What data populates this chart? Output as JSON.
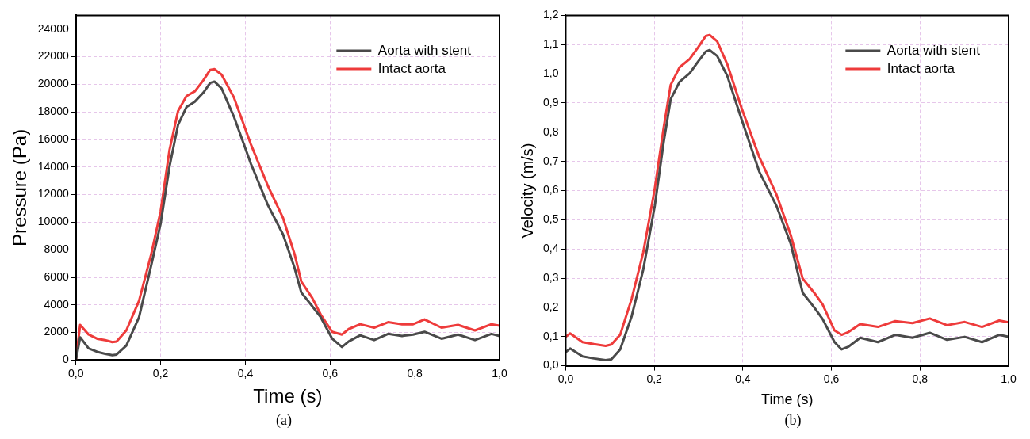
{
  "chart_data": [
    {
      "type": "line",
      "xlabel": "Time (s)",
      "ylabel": "Pressure (Pa)",
      "annotations": [
        "(a)"
      ],
      "grid": true,
      "legend": "top right",
      "xlim": [
        0,
        1
      ],
      "xticks": [
        {
          "value": 0,
          "label": "0,0"
        },
        {
          "value": 0.2,
          "label": "0,2"
        },
        {
          "value": 0.4,
          "label": "0,4"
        },
        {
          "value": 0.6,
          "label": "0,6"
        },
        {
          "value": 0.8,
          "label": "0,8"
        },
        {
          "value": 1,
          "label": "1,0"
        }
      ],
      "ylim": [
        0,
        25000
      ],
      "yticks": [
        0,
        2000,
        4000,
        6000,
        8000,
        10000,
        12000,
        14000,
        16000,
        18000,
        20000,
        22000,
        24000
      ],
      "x": [
        0,
        0.01,
        0.03,
        0.05,
        0.069,
        0.086,
        0.096,
        0.119,
        0.149,
        0.178,
        0.2,
        0.221,
        0.241,
        0.261,
        0.281,
        0.301,
        0.317,
        0.327,
        0.344,
        0.373,
        0.413,
        0.453,
        0.489,
        0.516,
        0.532,
        0.558,
        0.578,
        0.605,
        0.628,
        0.644,
        0.671,
        0.704,
        0.737,
        0.77,
        0.796,
        0.823,
        0.863,
        0.902,
        0.942,
        0.981,
        1
      ],
      "series": [
        {
          "name": "Aorta with stent",
          "color": "#4a4a4a",
          "values": [
            0,
            1650,
            850,
            600,
            450,
            350,
            400,
            1050,
            3100,
            6900,
            9900,
            14050,
            17050,
            18350,
            18750,
            19400,
            20100,
            20200,
            19700,
            17650,
            14250,
            11250,
            9100,
            6700,
            4900,
            3900,
            3100,
            1550,
            950,
            1350,
            1800,
            1450,
            1900,
            1750,
            1850,
            2050,
            1550,
            1850,
            1450,
            1900,
            1750
          ]
        },
        {
          "name": "Intact aorta",
          "color": "#ee3b3b",
          "values": [
            0,
            2550,
            1850,
            1550,
            1450,
            1300,
            1350,
            2150,
            4300,
            7700,
            10800,
            15250,
            18050,
            19150,
            19500,
            20300,
            21050,
            21100,
            20700,
            19050,
            15650,
            12650,
            10300,
            7700,
            5700,
            4500,
            3300,
            2050,
            1850,
            2250,
            2600,
            2350,
            2750,
            2600,
            2600,
            2950,
            2350,
            2550,
            2150,
            2600,
            2500
          ]
        }
      ]
    },
    {
      "type": "line",
      "xlabel": "Time (s)",
      "ylabel": "Velocity (m/s)",
      "annotations": [
        "(b)"
      ],
      "grid": true,
      "legend": "top right",
      "xlim": [
        0,
        1
      ],
      "xticks": [
        {
          "value": 0,
          "label": "0,0"
        },
        {
          "value": 0.2,
          "label": "0,2"
        },
        {
          "value": 0.4,
          "label": "0,4"
        },
        {
          "value": 0.6,
          "label": "0,6"
        },
        {
          "value": 0.8,
          "label": "0,8"
        },
        {
          "value": 1,
          "label": "1,0"
        }
      ],
      "ylim": [
        0,
        1.2
      ],
      "yticks": [
        {
          "value": 0,
          "label": "0,0"
        },
        {
          "value": 0.1,
          "label": "0,1"
        },
        {
          "value": 0.2,
          "label": "0,2"
        },
        {
          "value": 0.3,
          "label": "0,3"
        },
        {
          "value": 0.4,
          "label": "0,4"
        },
        {
          "value": 0.5,
          "label": "0,5"
        },
        {
          "value": 0.6,
          "label": "0,6"
        },
        {
          "value": 0.7,
          "label": "0,7"
        },
        {
          "value": 0.8,
          "label": "0,8"
        },
        {
          "value": 0.9,
          "label": "0,9"
        },
        {
          "value": 1,
          "label": "1,0"
        },
        {
          "value": 1.1,
          "label": "1,1"
        },
        {
          "value": 1.2,
          "label": "1,2"
        }
      ],
      "x": [
        0,
        0.01,
        0.038,
        0.064,
        0.09,
        0.103,
        0.123,
        0.149,
        0.175,
        0.201,
        0.221,
        0.237,
        0.257,
        0.28,
        0.299,
        0.316,
        0.325,
        0.342,
        0.365,
        0.397,
        0.437,
        0.476,
        0.508,
        0.535,
        0.561,
        0.58,
        0.607,
        0.623,
        0.639,
        0.665,
        0.705,
        0.744,
        0.783,
        0.822,
        0.861,
        0.901,
        0.94,
        0.979,
        1
      ],
      "series": [
        {
          "name": "Aorta with stent",
          "color": "#4a4a4a",
          "values": [
            0.047,
            0.059,
            0.032,
            0.025,
            0.019,
            0.022,
            0.056,
            0.17,
            0.329,
            0.547,
            0.764,
            0.913,
            0.972,
            1.002,
            1.042,
            1.076,
            1.081,
            1.061,
            0.992,
            0.844,
            0.665,
            0.547,
            0.418,
            0.25,
            0.2,
            0.16,
            0.081,
            0.056,
            0.066,
            0.096,
            0.081,
            0.106,
            0.096,
            0.113,
            0.089,
            0.099,
            0.081,
            0.106,
            0.099
          ]
        },
        {
          "name": "Intact aorta",
          "color": "#ee3b3b",
          "values": [
            0.099,
            0.111,
            0.081,
            0.074,
            0.068,
            0.073,
            0.106,
            0.23,
            0.388,
            0.606,
            0.814,
            0.962,
            1.022,
            1.051,
            1.091,
            1.129,
            1.133,
            1.111,
            1.032,
            0.883,
            0.715,
            0.586,
            0.448,
            0.299,
            0.25,
            0.21,
            0.121,
            0.106,
            0.116,
            0.143,
            0.133,
            0.153,
            0.146,
            0.162,
            0.139,
            0.15,
            0.133,
            0.155,
            0.149
          ]
        }
      ]
    }
  ]
}
